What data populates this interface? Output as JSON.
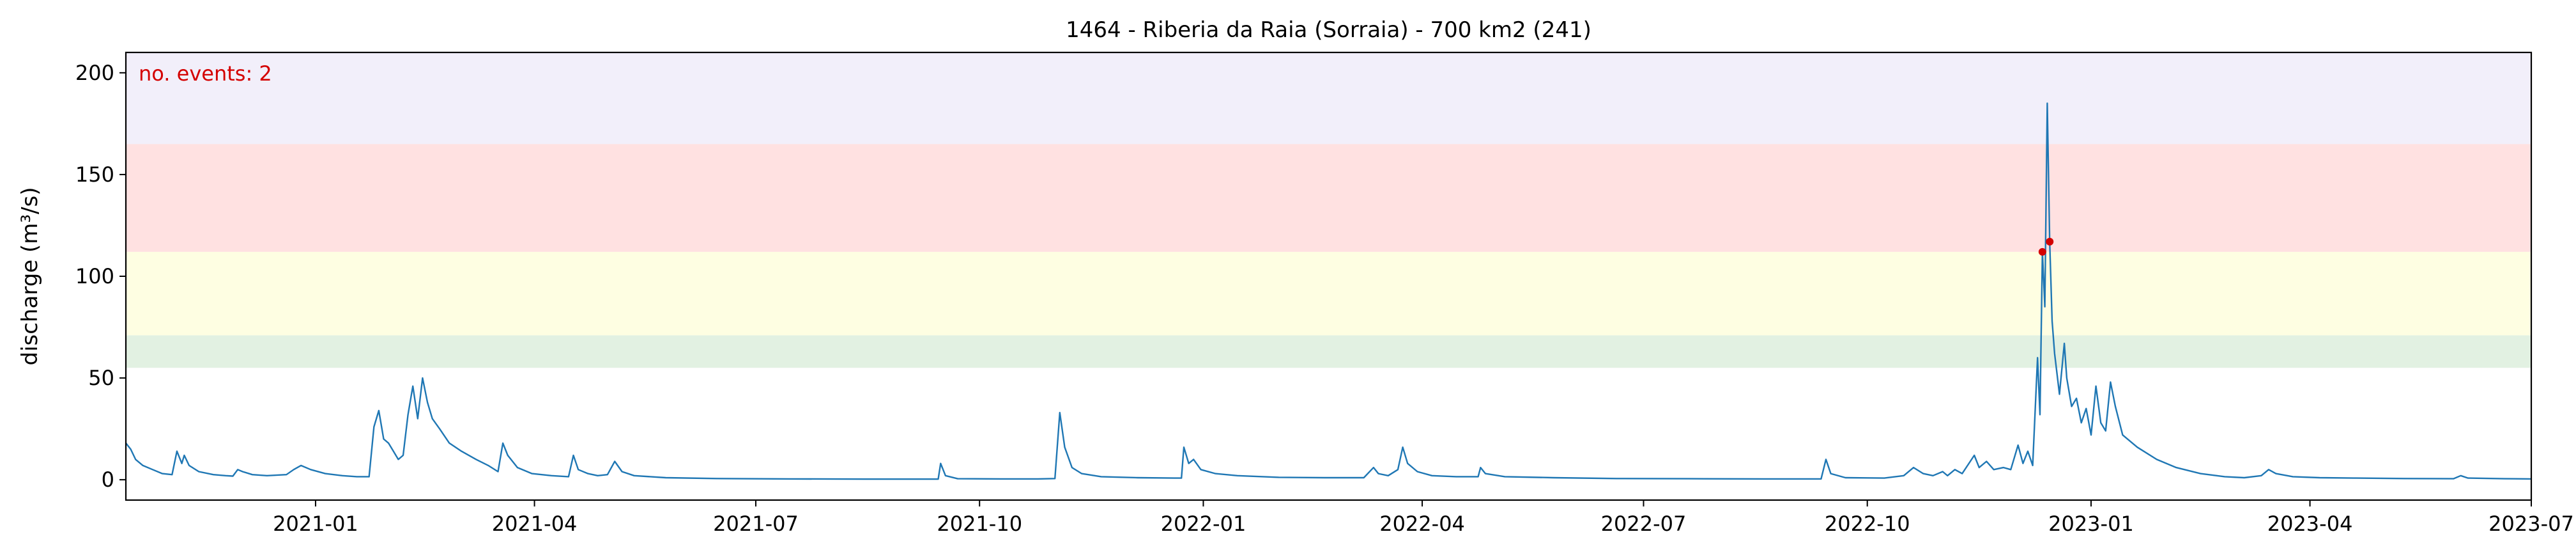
{
  "chart_data": {
    "type": "line",
    "title": "1464 - Riberia da Raia (Sorraia) - 700 km2 (241)",
    "xlabel": "",
    "ylabel": "discharge (m³/s)",
    "annotation": "no. events: 2",
    "xlim": [
      "2020-10-15",
      "2023-07-01"
    ],
    "ylim": [
      -10,
      210
    ],
    "x_ticks": [
      "2021-01",
      "2021-04",
      "2021-07",
      "2021-10",
      "2022-01",
      "2022-04",
      "2022-07",
      "2022-10",
      "2023-01",
      "2023-04",
      "2023-07"
    ],
    "y_ticks": [
      0,
      50,
      100,
      150,
      200
    ],
    "grid": false,
    "threshold_bands": [
      {
        "from": 55,
        "to": 71,
        "color": "#e2f1e2"
      },
      {
        "from": 71,
        "to": 112,
        "color": "#fefee2"
      },
      {
        "from": 112,
        "to": 165,
        "color": "#ffe1e1"
      },
      {
        "from": 165,
        "to": 210,
        "color": "#f2effa"
      }
    ],
    "series": [
      {
        "color": "#1f77b4",
        "points": [
          [
            "2020-10-15",
            18
          ],
          [
            "2020-10-17",
            15
          ],
          [
            "2020-10-19",
            10
          ],
          [
            "2020-10-22",
            7
          ],
          [
            "2020-10-26",
            5
          ],
          [
            "2020-10-30",
            3
          ],
          [
            "2020-11-03",
            2.5
          ],
          [
            "2020-11-05",
            14
          ],
          [
            "2020-11-07",
            8
          ],
          [
            "2020-11-08",
            12
          ],
          [
            "2020-11-10",
            7
          ],
          [
            "2020-11-14",
            4
          ],
          [
            "2020-11-20",
            2.5
          ],
          [
            "2020-11-25",
            2
          ],
          [
            "2020-11-28",
            1.8
          ],
          [
            "2020-11-30",
            5
          ],
          [
            "2020-12-02",
            4
          ],
          [
            "2020-12-06",
            2.5
          ],
          [
            "2020-12-12",
            2
          ],
          [
            "2020-12-20",
            2.5
          ],
          [
            "2020-12-23",
            5
          ],
          [
            "2020-12-26",
            7
          ],
          [
            "2020-12-30",
            5
          ],
          [
            "2021-01-05",
            3
          ],
          [
            "2021-01-12",
            2
          ],
          [
            "2021-01-18",
            1.5
          ],
          [
            "2021-01-23",
            1.5
          ],
          [
            "2021-01-25",
            26
          ],
          [
            "2021-01-27",
            34
          ],
          [
            "2021-01-29",
            20
          ],
          [
            "2021-01-31",
            18
          ],
          [
            "2021-02-02",
            14
          ],
          [
            "2021-02-04",
            10
          ],
          [
            "2021-02-06",
            12
          ],
          [
            "2021-02-08",
            32
          ],
          [
            "2021-02-10",
            46
          ],
          [
            "2021-02-12",
            30
          ],
          [
            "2021-02-14",
            50
          ],
          [
            "2021-02-16",
            38
          ],
          [
            "2021-02-18",
            30
          ],
          [
            "2021-02-21",
            25
          ],
          [
            "2021-02-25",
            18
          ],
          [
            "2021-03-02",
            14
          ],
          [
            "2021-03-08",
            10
          ],
          [
            "2021-03-13",
            7
          ],
          [
            "2021-03-17",
            4
          ],
          [
            "2021-03-19",
            18
          ],
          [
            "2021-03-21",
            12
          ],
          [
            "2021-03-25",
            6
          ],
          [
            "2021-03-31",
            3
          ],
          [
            "2021-04-08",
            2
          ],
          [
            "2021-04-15",
            1.5
          ],
          [
            "2021-04-17",
            12
          ],
          [
            "2021-04-19",
            5
          ],
          [
            "2021-04-23",
            3
          ],
          [
            "2021-04-27",
            2
          ],
          [
            "2021-05-01",
            2.5
          ],
          [
            "2021-05-04",
            9
          ],
          [
            "2021-05-07",
            4
          ],
          [
            "2021-05-12",
            2
          ],
          [
            "2021-05-25",
            1
          ],
          [
            "2021-06-15",
            0.6
          ],
          [
            "2021-07-15",
            0.4
          ],
          [
            "2021-08-15",
            0.3
          ],
          [
            "2021-09-10",
            0.3
          ],
          [
            "2021-09-14",
            0.3
          ],
          [
            "2021-09-15",
            8
          ],
          [
            "2021-09-17",
            2
          ],
          [
            "2021-09-22",
            0.5
          ],
          [
            "2021-10-10",
            0.4
          ],
          [
            "2021-10-25",
            0.4
          ],
          [
            "2021-11-01",
            0.6
          ],
          [
            "2021-11-03",
            33
          ],
          [
            "2021-11-05",
            16
          ],
          [
            "2021-11-08",
            6
          ],
          [
            "2021-11-12",
            3
          ],
          [
            "2021-11-20",
            1.5
          ],
          [
            "2021-12-05",
            1
          ],
          [
            "2021-12-20",
            0.8
          ],
          [
            "2021-12-23",
            0.8
          ],
          [
            "2021-12-24",
            16
          ],
          [
            "2021-12-26",
            8
          ],
          [
            "2021-12-28",
            10
          ],
          [
            "2021-12-31",
            5
          ],
          [
            "2022-01-06",
            3
          ],
          [
            "2022-01-15",
            2
          ],
          [
            "2022-02-01",
            1.2
          ],
          [
            "2022-02-20",
            1
          ],
          [
            "2022-03-08",
            1
          ],
          [
            "2022-03-12",
            6
          ],
          [
            "2022-03-14",
            3
          ],
          [
            "2022-03-18",
            2
          ],
          [
            "2022-03-22",
            5
          ],
          [
            "2022-03-24",
            16
          ],
          [
            "2022-03-26",
            8
          ],
          [
            "2022-03-30",
            4
          ],
          [
            "2022-04-05",
            2
          ],
          [
            "2022-04-15",
            1.5
          ],
          [
            "2022-04-24",
            1.5
          ],
          [
            "2022-04-25",
            6
          ],
          [
            "2022-04-27",
            3
          ],
          [
            "2022-05-05",
            1.5
          ],
          [
            "2022-05-25",
            1
          ],
          [
            "2022-06-20",
            0.6
          ],
          [
            "2022-07-20",
            0.5
          ],
          [
            "2022-08-20",
            0.4
          ],
          [
            "2022-09-12",
            0.4
          ],
          [
            "2022-09-14",
            10
          ],
          [
            "2022-09-16",
            3
          ],
          [
            "2022-09-22",
            1
          ],
          [
            "2022-10-08",
            0.8
          ],
          [
            "2022-10-16",
            2
          ],
          [
            "2022-10-20",
            6
          ],
          [
            "2022-10-24",
            3
          ],
          [
            "2022-10-28",
            2
          ],
          [
            "2022-11-01",
            4
          ],
          [
            "2022-11-03",
            2
          ],
          [
            "2022-11-06",
            5
          ],
          [
            "2022-11-09",
            3
          ],
          [
            "2022-11-14",
            12
          ],
          [
            "2022-11-16",
            6
          ],
          [
            "2022-11-19",
            9
          ],
          [
            "2022-11-22",
            5
          ],
          [
            "2022-11-26",
            6
          ],
          [
            "2022-11-29",
            5
          ],
          [
            "2022-12-02",
            17
          ],
          [
            "2022-12-04",
            8
          ],
          [
            "2022-12-06",
            14
          ],
          [
            "2022-12-08",
            7
          ],
          [
            "2022-12-10",
            60
          ],
          [
            "2022-12-11",
            32
          ],
          [
            "2022-12-12",
            112
          ],
          [
            "2022-12-13",
            85
          ],
          [
            "2022-12-14",
            185
          ],
          [
            "2022-12-15",
            117
          ],
          [
            "2022-12-16",
            78
          ],
          [
            "2022-12-17",
            62
          ],
          [
            "2022-12-18",
            52
          ],
          [
            "2022-12-19",
            42
          ],
          [
            "2022-12-21",
            67
          ],
          [
            "2022-12-22",
            50
          ],
          [
            "2022-12-24",
            36
          ],
          [
            "2022-12-26",
            40
          ],
          [
            "2022-12-28",
            28
          ],
          [
            "2022-12-30",
            35
          ],
          [
            "2023-01-01",
            22
          ],
          [
            "2023-01-03",
            46
          ],
          [
            "2023-01-05",
            28
          ],
          [
            "2023-01-07",
            24
          ],
          [
            "2023-01-09",
            48
          ],
          [
            "2023-01-11",
            36
          ],
          [
            "2023-01-14",
            22
          ],
          [
            "2023-01-20",
            16
          ],
          [
            "2023-01-28",
            10
          ],
          [
            "2023-02-05",
            6
          ],
          [
            "2023-02-15",
            3
          ],
          [
            "2023-02-25",
            1.5
          ],
          [
            "2023-03-05",
            1
          ],
          [
            "2023-03-12",
            2
          ],
          [
            "2023-03-15",
            5
          ],
          [
            "2023-03-18",
            3
          ],
          [
            "2023-03-25",
            1.5
          ],
          [
            "2023-04-05",
            1
          ],
          [
            "2023-04-20",
            0.8
          ],
          [
            "2023-05-10",
            0.6
          ],
          [
            "2023-05-30",
            0.5
          ],
          [
            "2023-06-02",
            2
          ],
          [
            "2023-06-05",
            0.8
          ],
          [
            "2023-06-20",
            0.5
          ],
          [
            "2023-07-01",
            0.4
          ]
        ]
      }
    ],
    "events": [
      {
        "x": "2022-12-12",
        "y": 112
      },
      {
        "x": "2022-12-15",
        "y": 117
      }
    ],
    "event_color": "#d40000"
  }
}
